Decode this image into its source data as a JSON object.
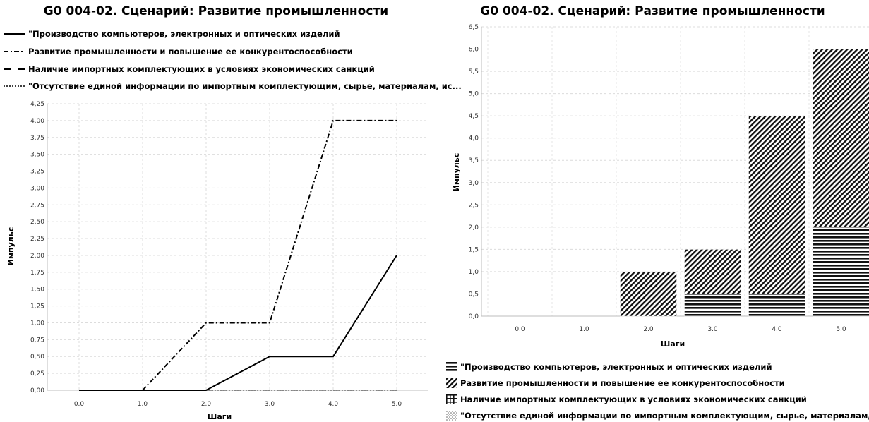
{
  "chart_data": [
    {
      "type": "line",
      "title": "G0 004-02. Сценарий: Развитие промышленности",
      "xlabel": "Шаги",
      "ylabel": "Импульс",
      "x": [
        0.0,
        1.0,
        2.0,
        3.0,
        4.0,
        5.0
      ],
      "x_tick_labels": [
        "0.0",
        "1.0",
        "2.0",
        "3.0",
        "4.0",
        "5.0"
      ],
      "ylim": [
        0,
        4.25
      ],
      "y_tick_labels": [
        "0,00",
        "0,25",
        "0,50",
        "0,75",
        "1,00",
        "1,25",
        "1,50",
        "1,75",
        "2,00",
        "2,25",
        "2,50",
        "2,75",
        "3,00",
        "3,25",
        "3,50",
        "3,75",
        "4,00",
        "4,25"
      ],
      "grid": true,
      "legend_position": "top",
      "series": [
        {
          "name": "\"Производство компьютеров, электронных и оптических изделий",
          "style": "solid",
          "values": [
            0,
            0,
            0,
            0.5,
            0.5,
            2.0
          ]
        },
        {
          "name": "Развитие промышленности и повышение ее конкурентоспособности",
          "style": "dash-dot",
          "values": [
            0,
            0,
            1.0,
            1.0,
            4.0,
            4.0
          ]
        },
        {
          "name": "Наличие импортных комплектующих в условиях экономических санкций",
          "style": "dashed",
          "values": [
            0,
            0,
            0,
            0,
            0,
            0
          ]
        },
        {
          "name": "\"Отсутствие единой информации по импортным комплектующим, сырье, материалам, ис...",
          "style": "dotted",
          "values": [
            0,
            0,
            0,
            0,
            0,
            0
          ]
        }
      ]
    },
    {
      "type": "bar",
      "stacked": true,
      "title": "G0 004-02. Сценарий: Развитие промышленности",
      "xlabel": "Шаги",
      "ylabel": "Импульс",
      "categories": [
        "0.0",
        "1.0",
        "2.0",
        "3.0",
        "4.0",
        "5.0"
      ],
      "ylim": [
        0,
        6.5
      ],
      "y_tick_labels": [
        "0,0",
        "0,5",
        "1,0",
        "1,5",
        "2,0",
        "2,5",
        "3,0",
        "3,5",
        "4,0",
        "4,5",
        "5,0",
        "5,5",
        "6,0",
        "6,5"
      ],
      "grid": true,
      "legend_position": "bottom",
      "series": [
        {
          "name": "\"Производство компьютеров, электронных и оптических изделий",
          "pattern": "horizontal-lines",
          "values": [
            0,
            0,
            0,
            0.5,
            0.5,
            2.0
          ]
        },
        {
          "name": "Развитие промышленности и повышение ее конкурентоспособности",
          "pattern": "diagonal-lines",
          "values": [
            0,
            0,
            1.0,
            1.0,
            4.0,
            4.0
          ]
        },
        {
          "name": "Наличие импортных комплектующих в условиях экономических санкций",
          "pattern": "grid",
          "values": [
            0,
            0,
            0,
            0,
            0,
            0
          ]
        },
        {
          "name": "\"Отсутствие единой информации по импортным комплектующим, сырье, материалам, исп...",
          "pattern": "dots",
          "values": [
            0,
            0,
            0,
            0,
            0,
            0
          ]
        }
      ]
    }
  ]
}
